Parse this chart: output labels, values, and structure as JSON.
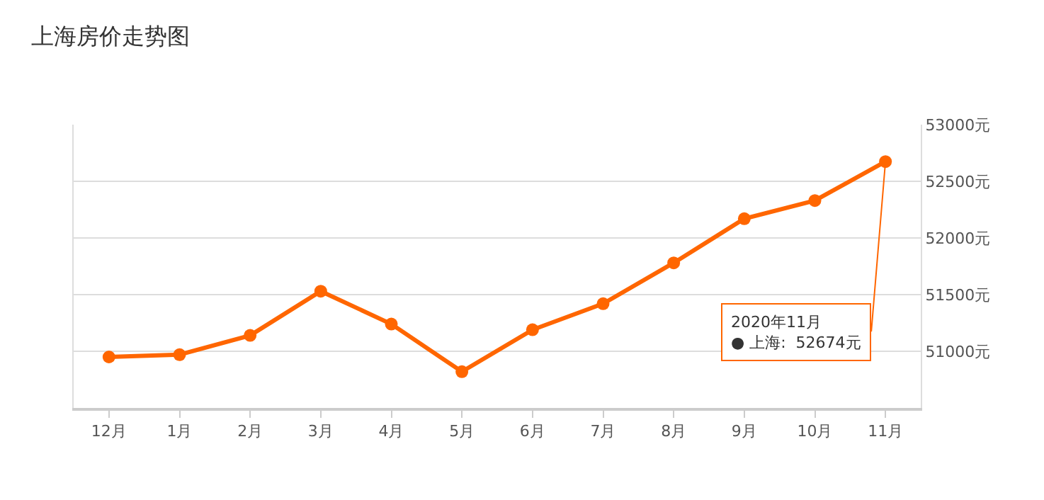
{
  "chart_data": {
    "type": "line",
    "title": "上海房价走势图",
    "categories": [
      "12月",
      "1月",
      "2月",
      "3月",
      "4月",
      "5月",
      "6月",
      "7月",
      "8月",
      "9月",
      "10月",
      "11月"
    ],
    "series": [
      {
        "color": "#ff6600",
        "values": [
          50950,
          50970,
          51140,
          51530,
          51240,
          50820,
          51190,
          51420,
          51780,
          52170,
          52330,
          52674
        ]
      }
    ],
    "ylim": [
      50500,
      53000
    ],
    "yticks": [
      {
        "value": 51000,
        "label": "51000元"
      },
      {
        "value": 51500,
        "label": "51500元"
      },
      {
        "value": 52000,
        "label": "52000元"
      },
      {
        "value": 52500,
        "label": "52500元"
      },
      {
        "value": 53000,
        "label": "53000元"
      }
    ],
    "grid": "y",
    "marker": "circle",
    "line_style": "solid",
    "annotations": [
      {
        "text": "2020年11月\n● 上海:  52674元",
        "x": "11月",
        "y": 52674
      }
    ]
  }
}
